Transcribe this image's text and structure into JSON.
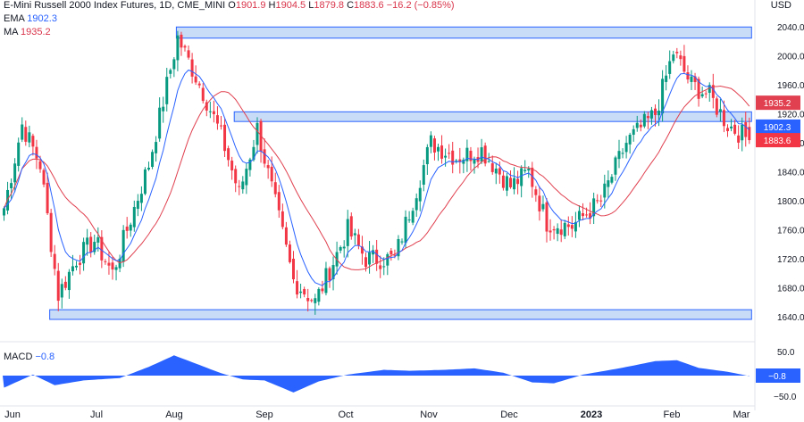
{
  "header": {
    "title": "E-Mini Russell 2000 Index Futures, 1D, CME_MINI",
    "o_label": "O",
    "o_value": "1901.9",
    "h_label": "H",
    "h_value": "1904.5",
    "l_label": "L",
    "l_value": "1879.8",
    "c_label": "C",
    "c_value": "1883.6",
    "change": "−16.2 (−0.85%)",
    "ema_label": "EMA",
    "ema_value": "1902.3",
    "ma_label": "MA",
    "ma_value": "1935.2",
    "currency": "USD"
  },
  "macd_header": {
    "label": "MACD",
    "value": "−0.8"
  },
  "colors": {
    "up": "#089981",
    "down": "#f23645",
    "ema": "#2962ff",
    "ma": "#e0404f",
    "zone_fill": "#c9dcf7",
    "zone_stroke": "#2962ff",
    "macd": "#2962ff"
  },
  "chart_data": {
    "type": "candlestick",
    "ylim": [
      1620,
      2060
    ],
    "y_ticks": [
      1640,
      1680,
      1720,
      1760,
      1800,
      1840,
      1880,
      1920,
      1960,
      2000,
      2040
    ],
    "x_labels": [
      "Jun",
      "Jul",
      "Aug",
      "Sep",
      "Oct",
      "Nov",
      "Dec",
      "2023",
      "Feb",
      "Mar"
    ],
    "price_badges": [
      {
        "value": "1935.2",
        "color": "#e0404f",
        "y": 1935.2
      },
      {
        "value": "1902.3",
        "color": "#2962ff",
        "y": 1902.3
      },
      {
        "value": "1883.6",
        "color": "#f23645",
        "y": 1883.6
      }
    ],
    "key_points": [
      [
        0,
        1790
      ],
      [
        5,
        1905
      ],
      [
        10,
        1850
      ],
      [
        15,
        1670
      ],
      [
        20,
        1720
      ],
      [
        25,
        1745
      ],
      [
        30,
        1700
      ],
      [
        40,
        1850
      ],
      [
        48,
        2025
      ],
      [
        55,
        1950
      ],
      [
        60,
        1890
      ],
      [
        65,
        1810
      ],
      [
        70,
        1900
      ],
      [
        80,
        1690
      ],
      [
        86,
        1660
      ],
      [
        95,
        1760
      ],
      [
        100,
        1720
      ],
      [
        108,
        1720
      ],
      [
        118,
        1880
      ],
      [
        125,
        1860
      ],
      [
        132,
        1870
      ],
      [
        140,
        1820
      ],
      [
        145,
        1840
      ],
      [
        150,
        1770
      ],
      [
        157,
        1765
      ],
      [
        165,
        1800
      ],
      [
        172,
        1880
      ],
      [
        180,
        1920
      ],
      [
        185,
        2005
      ],
      [
        190,
        1960
      ],
      [
        195,
        1945
      ],
      [
        200,
        1905
      ],
      [
        206,
        1884
      ]
    ],
    "zones": [
      {
        "start": 48,
        "end": 206,
        "low": 2028,
        "high": 2036
      },
      {
        "start": 64,
        "end": 206,
        "low": 1913,
        "high": 1919
      },
      {
        "start": 13,
        "end": 206,
        "low": 1640,
        "high": 1646
      }
    ],
    "macd": {
      "ylim": [
        -60,
        60
      ],
      "y_ticks": [
        "50.0",
        "−0.8",
        "−50.0"
      ],
      "key_points": [
        [
          0,
          -25
        ],
        [
          8,
          2
        ],
        [
          14,
          -20
        ],
        [
          22,
          -10
        ],
        [
          32,
          -5
        ],
        [
          40,
          18
        ],
        [
          47,
          42
        ],
        [
          53,
          25
        ],
        [
          60,
          5
        ],
        [
          66,
          -8
        ],
        [
          72,
          -10
        ],
        [
          80,
          -35
        ],
        [
          87,
          -12
        ],
        [
          95,
          2
        ],
        [
          105,
          12
        ],
        [
          112,
          10
        ],
        [
          122,
          12
        ],
        [
          130,
          15
        ],
        [
          138,
          6
        ],
        [
          146,
          -14
        ],
        [
          152,
          -16
        ],
        [
          160,
          2
        ],
        [
          170,
          15
        ],
        [
          180,
          30
        ],
        [
          186,
          32
        ],
        [
          192,
          16
        ],
        [
          200,
          8
        ],
        [
          206,
          -1
        ]
      ]
    }
  }
}
